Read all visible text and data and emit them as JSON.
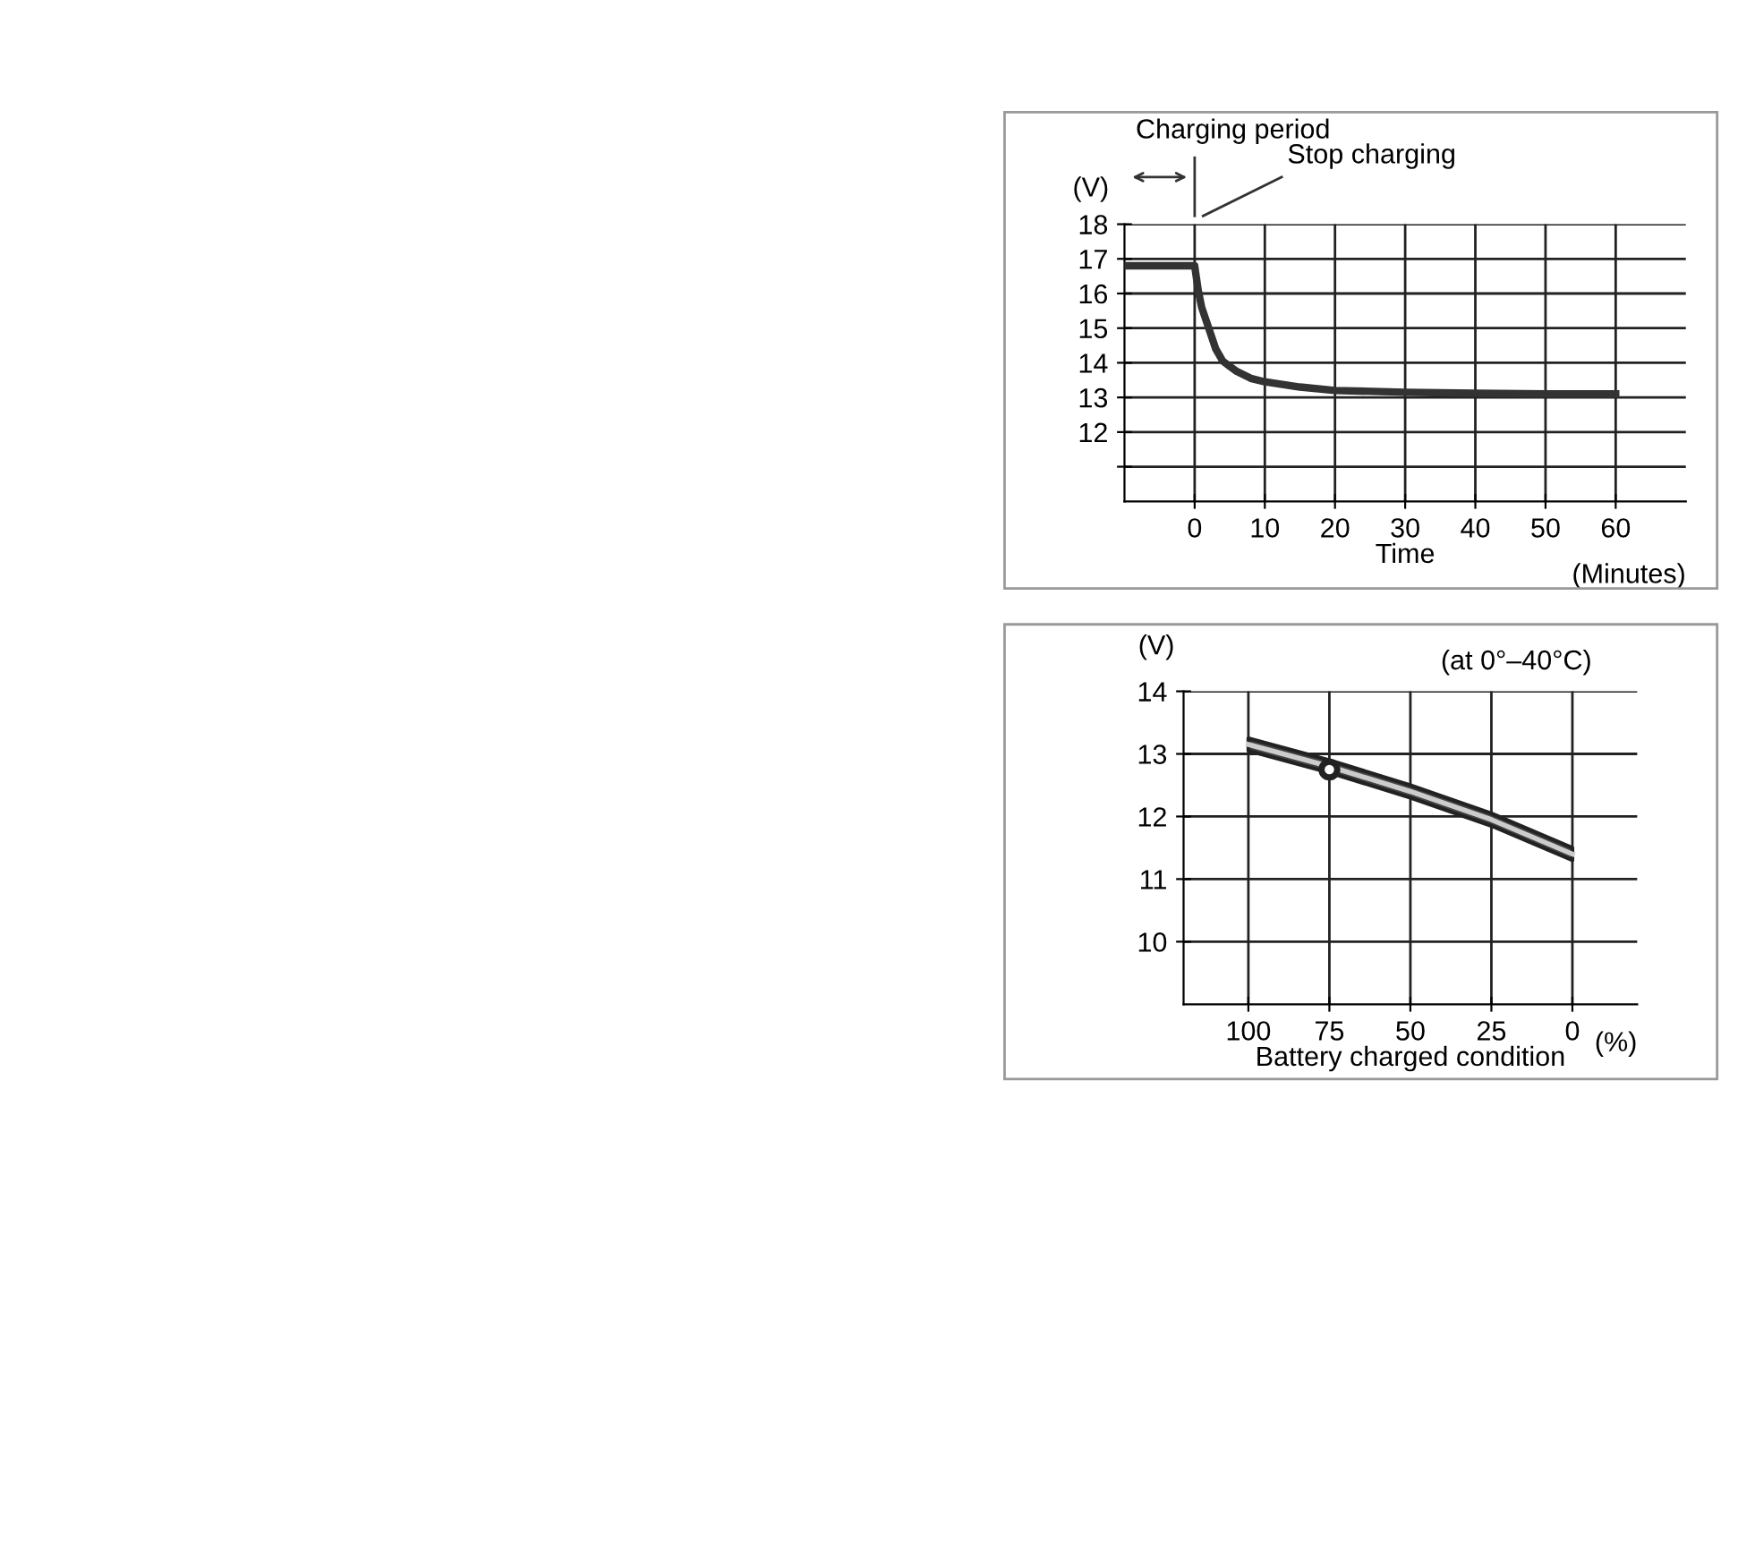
{
  "chart_data": [
    {
      "type": "line",
      "ylabel": "(V)",
      "xlabel": "Time",
      "x": [
        -10,
        -5,
        0,
        0.5,
        1,
        2,
        3,
        4,
        5,
        6,
        8,
        10,
        15,
        20,
        30,
        40,
        50,
        60
      ],
      "series": [
        {
          "color": "#333333",
          "values": [
            16.8,
            16.8,
            16.8,
            16.1,
            15.6,
            15.0,
            14.4,
            14.05,
            13.9,
            13.75,
            13.55,
            13.45,
            13.3,
            13.2,
            13.15,
            13.12,
            13.1,
            13.1
          ]
        }
      ],
      "xlim": [
        -10,
        70
      ],
      "xticks": [
        0,
        10,
        20,
        30,
        40,
        50,
        60
      ],
      "ylim": [
        10,
        18
      ],
      "yticks": [
        {
          "value": 11,
          "label": null
        },
        12,
        13,
        14,
        15,
        16,
        17,
        18
      ],
      "grid": true,
      "annotations": [
        "Charging period",
        "Stop charging",
        "(Minutes)"
      ]
    },
    {
      "type": "line",
      "ylabel": "(V)",
      "xlabel": "Battery charged condition",
      "x": [
        100,
        75,
        50,
        25,
        0
      ],
      "series": [
        {
          "color": "#cccccc",
          "values": [
            13.15,
            12.8,
            12.4,
            11.95,
            11.4
          ],
          "lower": [
            13.05,
            12.7,
            12.3,
            11.85,
            11.3
          ],
          "upper": [
            13.25,
            12.9,
            12.5,
            12.05,
            11.5
          ]
        },
        {
          "type": "scatter",
          "color": "#ffffff",
          "x": [
            75
          ],
          "values": [
            12.75
          ]
        }
      ],
      "xlim": [
        120,
        -20
      ],
      "xticks": [
        100,
        75,
        50,
        25,
        0
      ],
      "ylim": [
        9,
        14
      ],
      "yticks": [
        10,
        11,
        12,
        13,
        14
      ],
      "grid": true,
      "annotations": [
        "(at 0°–40°C)",
        "(%)"
      ]
    }
  ]
}
